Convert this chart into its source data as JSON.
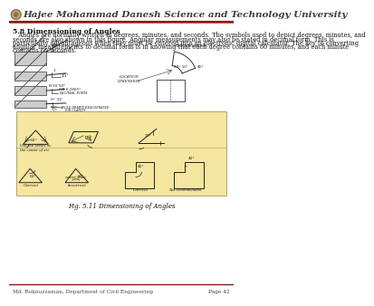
{
  "page_bg": "#ffffff",
  "header_title": "Hajee Mohammad Danesh Science and Technology University",
  "header_title_color": "#3d3d3d",
  "header_line_color": "#8B1A1A",
  "section_title": "5.8 Dimensioning of Angles",
  "body_text_lines": [
    "   Angles are normally written in degrees, minutes, and seconds. The symbols used to depict degrees, minutes, and",
    "seconds are also shown in this figure. Angular measurements may also be stated in decimal form. This is",
    "particularly advantageous when they must be entered into an electronic digital calculator. The key to converting",
    "angular measurements to decimal form is in knowing that each degree contains 60 minutes, and each minute",
    "contains 60 seconds."
  ],
  "fig_caption": "Fig. 5.11 Dimensioning of Angles",
  "footer_left": "Md. Roknuzzaman, Department of Civil Engineering",
  "footer_right": "Page 42",
  "footer_line_color": "#8B1A1A",
  "diagram_bg": "#F5E6A0",
  "text_color": "#111111",
  "body_font_size": 4.8,
  "section_font_size": 5.5
}
